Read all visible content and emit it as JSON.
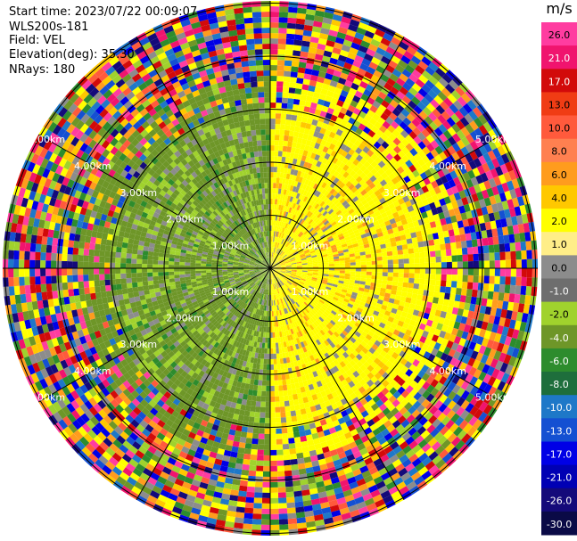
{
  "header": {
    "start_time": "Start time: 2023/07/22 00:09:07",
    "instrument": "WLS200s-181",
    "field": "Field: VEL",
    "elevation": "Elevation(deg): 35.30",
    "nrays": "NRays: 180"
  },
  "range_labels": [
    "1.00km",
    "2.00km",
    "3.00km",
    "4.00km",
    "5.00km"
  ],
  "colorbar": {
    "unit": "m/s",
    "ticks": [
      "26.0",
      "21.0",
      "17.0",
      "13.0",
      "10.0",
      "8.0",
      "6.0",
      "4.0",
      "2.0",
      "1.0",
      "0.0",
      "-1.0",
      "-2.0",
      "-4.0",
      "-6.0",
      "-8.0",
      "-10.0",
      "-13.0",
      "-17.0",
      "-21.0",
      "-26.0",
      "-30.0"
    ],
    "colors": [
      "#ff3ca0",
      "#f0146e",
      "#d20a0a",
      "#f03c14",
      "#ff5a3c",
      "#ff8050",
      "#ff9c1e",
      "#ffc800",
      "#ffff00",
      "#ffee88",
      "#8c8c8c",
      "#6e6e6e",
      "#a0d22d",
      "#6e9628",
      "#2d8c2d",
      "#1e6e3c",
      "#1e78c8",
      "#1450d2",
      "#0000e6",
      "#0000b4",
      "#140a7a",
      "#0a0a46"
    ]
  }
}
